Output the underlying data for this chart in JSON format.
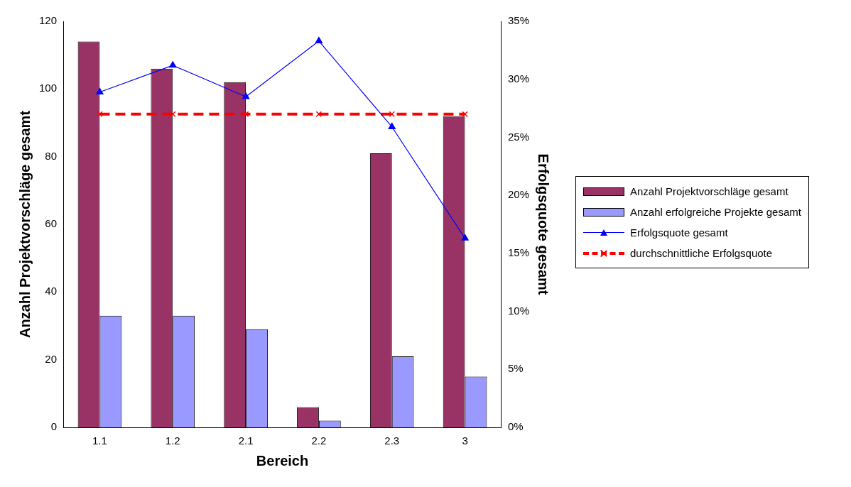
{
  "chart_data": {
    "type": "bar",
    "xlabel": "Bereich",
    "ylabel": "Anzahl Projektvorschläge gesamt",
    "y2label": "Erfolgsquote gesamt",
    "categories": [
      "1.1",
      "1.2",
      "2.1",
      "2.2",
      "2.3",
      "3"
    ],
    "series": [
      {
        "name": "Anzahl Projektvorschläge gesamt",
        "color": "#993366",
        "values": [
          114,
          106,
          102,
          6,
          81,
          92
        ]
      },
      {
        "name": "Anzahl erfolgreiche Projekte gesamt",
        "color": "#9999ff",
        "values": [
          33,
          33,
          29,
          2,
          21,
          15
        ]
      },
      {
        "name": "Erfolgsquote  gesamt",
        "type": "line",
        "axis": "y2",
        "color": "#0000ff",
        "marker": "triangle",
        "line_style": "solid",
        "values": [
          28.9,
          31.2,
          28.5,
          33.3,
          25.9,
          16.3
        ]
      },
      {
        "name": "durchschnittliche Erfolgsquote",
        "type": "line",
        "axis": "y2",
        "color": "#ff0000",
        "marker": "cross",
        "line_style": "dashed",
        "values": [
          27,
          27,
          27,
          27,
          27,
          27
        ]
      }
    ],
    "ylim": [
      0,
      120
    ],
    "yticks": [
      0,
      20,
      40,
      60,
      80,
      100,
      120
    ],
    "y2lim": [
      0,
      35
    ],
    "y2ticks": [
      {
        "value": 0,
        "label": "0%"
      },
      {
        "value": 5,
        "label": "5%"
      },
      {
        "value": 10,
        "label": "10%"
      },
      {
        "value": 15,
        "label": "15%"
      },
      {
        "value": 20,
        "label": "20%"
      },
      {
        "value": 25,
        "label": "25%"
      },
      {
        "value": 30,
        "label": "30%"
      },
      {
        "value": 35,
        "label": "35%"
      }
    ],
    "grid": false,
    "legend": "right"
  }
}
